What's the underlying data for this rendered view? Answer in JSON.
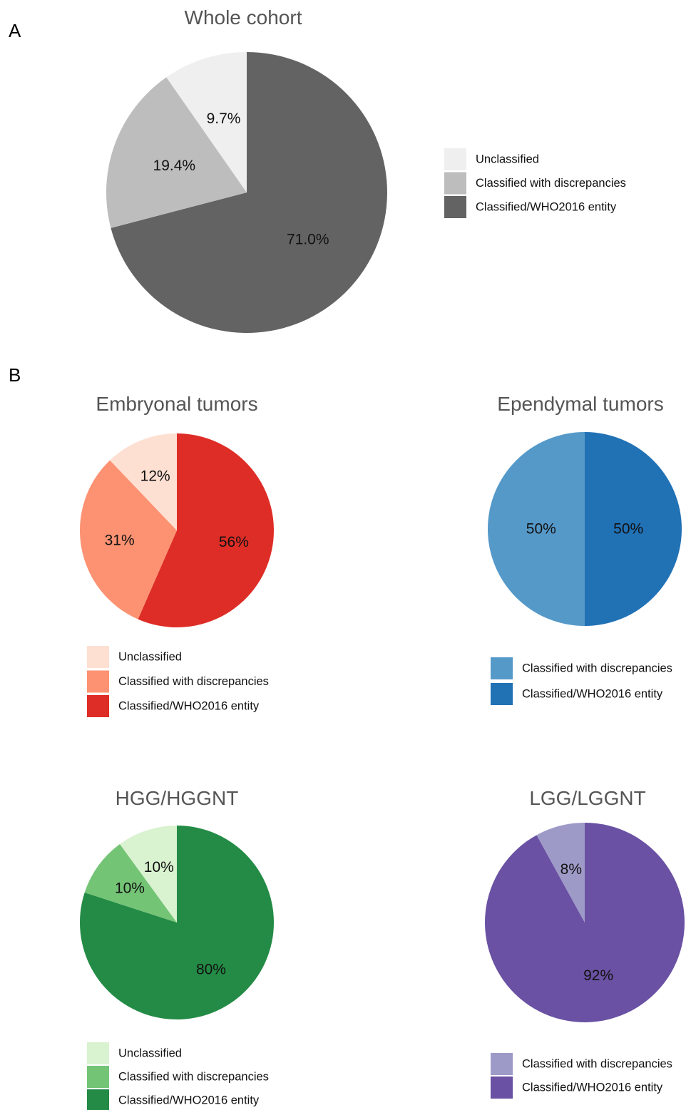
{
  "panels": {
    "a": "A",
    "b": "B"
  },
  "chart_data": [
    {
      "type": "pie",
      "title": "Whole cohort",
      "slices": [
        {
          "label": "Unclassified",
          "value": 9.7,
          "display": "9.7%",
          "color": "#efefef"
        },
        {
          "label": "Classified with discrepancies",
          "value": 19.4,
          "display": "19.4%",
          "color": "#bdbdbd"
        },
        {
          "label": "Classified/WHO2016 entity",
          "value": 71.0,
          "display": "71.0%",
          "color": "#636363"
        }
      ],
      "legend": [
        "Unclassified",
        "Classified with discrepancies",
        "Classified/WHO2016 entity"
      ],
      "legend_position": "right"
    },
    {
      "type": "pie",
      "title": "Embryonal tumors",
      "slices": [
        {
          "label": "Unclassified",
          "value": 12,
          "display": "12%",
          "color": "#fee0d2"
        },
        {
          "label": "Classified with discrepancies",
          "value": 31,
          "display": "31%",
          "color": "#fc9272"
        },
        {
          "label": "Classified/WHO2016 entity",
          "value": 56,
          "display": "56%",
          "color": "#de2d26"
        }
      ],
      "legend": [
        "Unclassified",
        "Classified with discrepancies",
        "Classified/WHO2016 entity"
      ],
      "legend_position": "bottom"
    },
    {
      "type": "pie",
      "title": "Ependymal tumors",
      "slices": [
        {
          "label": "Classified with discrepancies",
          "value": 50,
          "display": "50%",
          "color": "#5599c9"
        },
        {
          "label": "Classified/WHO2016 entity",
          "value": 50,
          "display": "50%",
          "color": "#2171b5"
        }
      ],
      "legend": [
        "Classified with discrepancies",
        "Classified/WHO2016 entity"
      ],
      "legend_position": "bottom"
    },
    {
      "type": "pie",
      "title": "HGG/HGGNT",
      "slices": [
        {
          "label": "Unclassified",
          "value": 10,
          "display": "10%",
          "color": "#d9f2d0"
        },
        {
          "label": "Classified with discrepancies",
          "value": 10,
          "display": "10%",
          "color": "#74c476"
        },
        {
          "label": "Classified/WHO2016 entity",
          "value": 80,
          "display": "80%",
          "color": "#238b45"
        }
      ],
      "legend": [
        "Unclassified",
        "Classified with discrepancies",
        "Classified/WHO2016 entity"
      ],
      "legend_position": "bottom"
    },
    {
      "type": "pie",
      "title": "LGG/LGGNT",
      "slices": [
        {
          "label": "Classified with discrepancies",
          "value": 8,
          "display": "8%",
          "color": "#9e9ac8"
        },
        {
          "label": "Classified/WHO2016 entity",
          "value": 92,
          "display": "92%",
          "color": "#6a51a3"
        }
      ],
      "legend": [
        "Classified with discrepancies",
        "Classified/WHO2016 entity"
      ],
      "legend_position": "bottom"
    }
  ]
}
